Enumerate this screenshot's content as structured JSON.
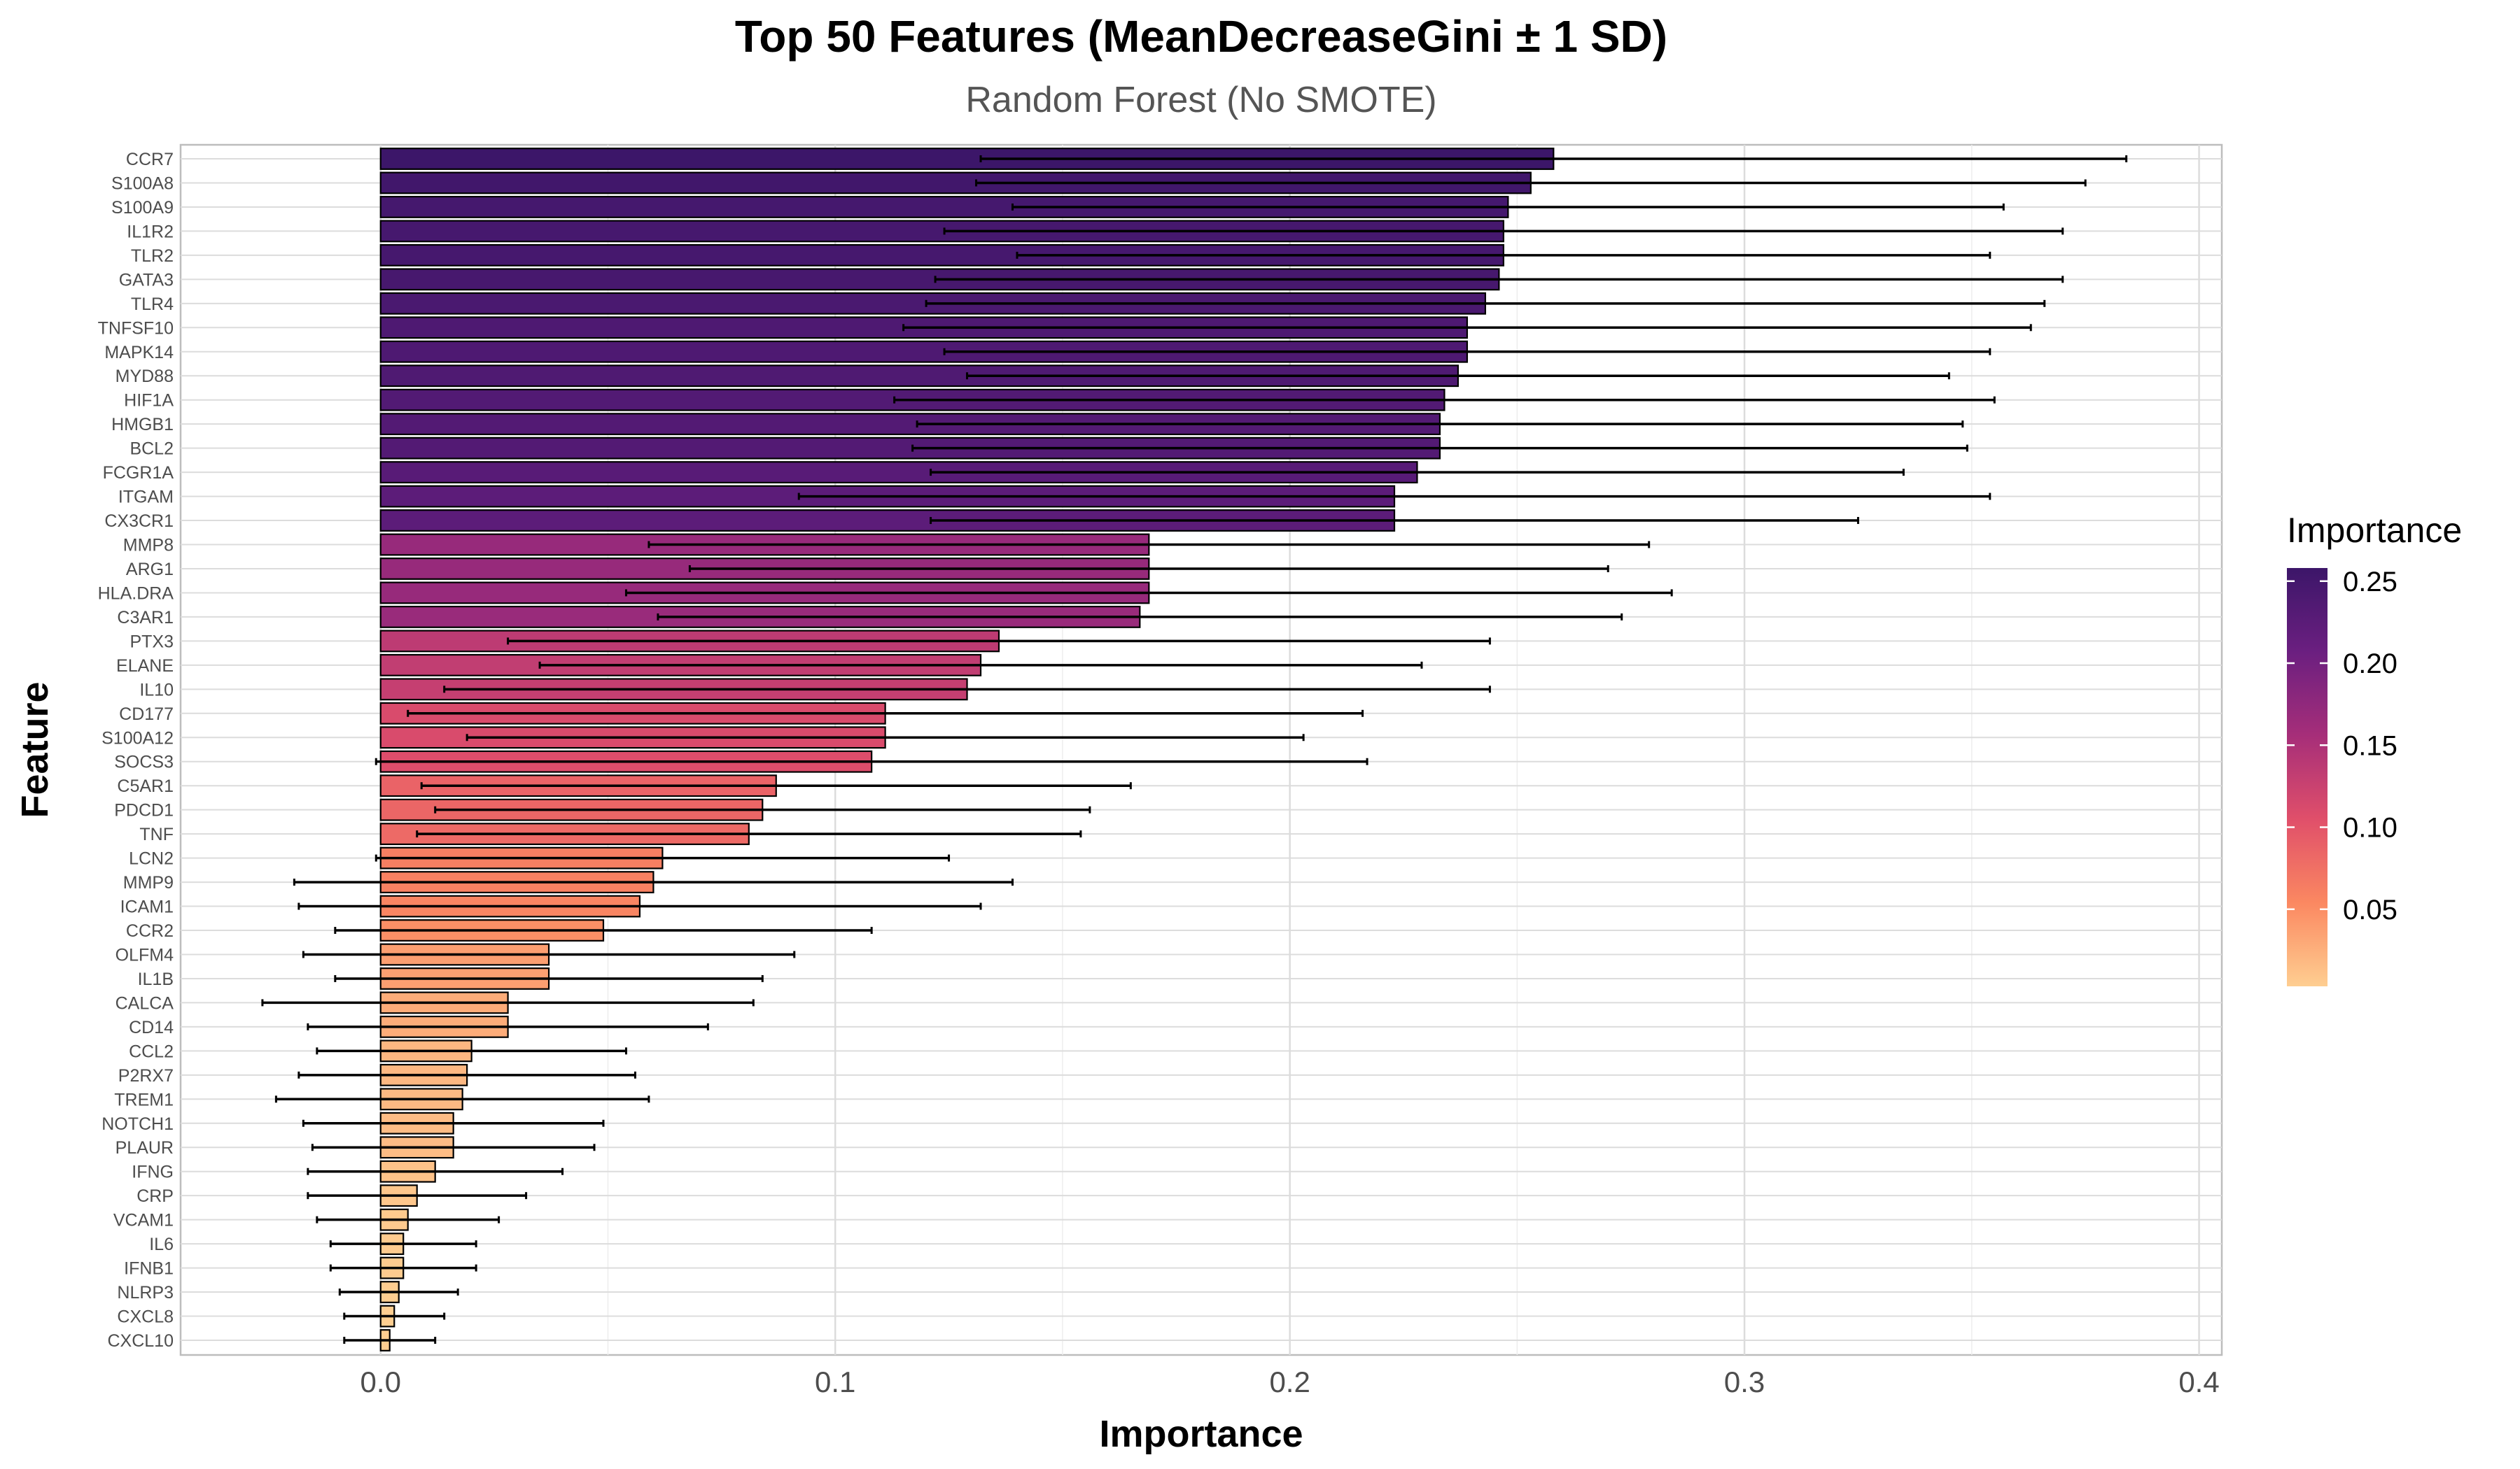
{
  "chart_data": {
    "type": "bar",
    "orientation": "horizontal",
    "title": "Top 50 Features (MeanDecreaseGini ± 1 SD)",
    "subtitle": "Random Forest (No SMOTE)",
    "xlabel": "Importance",
    "ylabel": "Feature",
    "xlim": [
      -0.044,
      0.405
    ],
    "xticks": [
      0.0,
      0.1,
      0.2,
      0.3,
      0.4
    ],
    "xtick_labels": [
      "0.0",
      "0.1",
      "0.2",
      "0.3",
      "0.4"
    ],
    "grid": true,
    "legend": {
      "title": "Importance",
      "position": "right",
      "type": "colorbar",
      "colormap": "magma",
      "range": [
        0.003,
        0.258
      ],
      "ticks": [
        0.05,
        0.1,
        0.15,
        0.2,
        0.25
      ],
      "tick_labels": [
        "0.05",
        "0.10",
        "0.15",
        "0.20",
        "0.25"
      ],
      "colors": [
        "#FECE91",
        "#FB8861",
        "#E04F6A",
        "#A62E79",
        "#6B1F80",
        "#3C1669"
      ]
    },
    "categories": [
      "CCR7",
      "S100A8",
      "S100A9",
      "IL1R2",
      "TLR2",
      "GATA3",
      "TLR4",
      "TNFSF10",
      "MAPK14",
      "MYD88",
      "HIF1A",
      "HMGB1",
      "BCL2",
      "FCGR1A",
      "ITGAM",
      "CX3CR1",
      "MMP8",
      "ARG1",
      "HLA.DRA",
      "C3AR1",
      "PTX3",
      "ELANE",
      "IL10",
      "CD177",
      "S100A12",
      "SOCS3",
      "C5AR1",
      "PDCD1",
      "TNF",
      "LCN2",
      "MMP9",
      "ICAM1",
      "CCR2",
      "OLFM4",
      "IL1B",
      "CALCA",
      "CD14",
      "CCL2",
      "P2RX7",
      "TREM1",
      "NOTCH1",
      "PLAUR",
      "IFNG",
      "CRP",
      "VCAM1",
      "IL6",
      "IFNB1",
      "NLRP3",
      "CXCL8",
      "CXCL10"
    ],
    "values": [
      0.258,
      0.253,
      0.248,
      0.247,
      0.247,
      0.246,
      0.243,
      0.239,
      0.239,
      0.237,
      0.234,
      0.233,
      0.233,
      0.228,
      0.223,
      0.223,
      0.169,
      0.169,
      0.169,
      0.167,
      0.136,
      0.132,
      0.129,
      0.111,
      0.111,
      0.108,
      0.087,
      0.084,
      0.081,
      0.062,
      0.06,
      0.057,
      0.049,
      0.037,
      0.037,
      0.028,
      0.028,
      0.02,
      0.019,
      0.018,
      0.016,
      0.016,
      0.012,
      0.008,
      0.006,
      0.005,
      0.005,
      0.004,
      0.003,
      0.002
    ],
    "errors": [
      0.126,
      0.122,
      0.109,
      0.123,
      0.107,
      0.124,
      0.123,
      0.124,
      0.115,
      0.108,
      0.121,
      0.115,
      0.116,
      0.107,
      0.131,
      0.102,
      0.11,
      0.101,
      0.115,
      0.106,
      0.108,
      0.097,
      0.115,
      0.105,
      0.092,
      0.109,
      0.078,
      0.072,
      0.073,
      0.063,
      0.079,
      0.075,
      0.059,
      0.054,
      0.047,
      0.054,
      0.044,
      0.034,
      0.037,
      0.041,
      0.033,
      0.031,
      0.028,
      0.024,
      0.02,
      0.016,
      0.016,
      0.013,
      0.011,
      0.01
    ]
  }
}
